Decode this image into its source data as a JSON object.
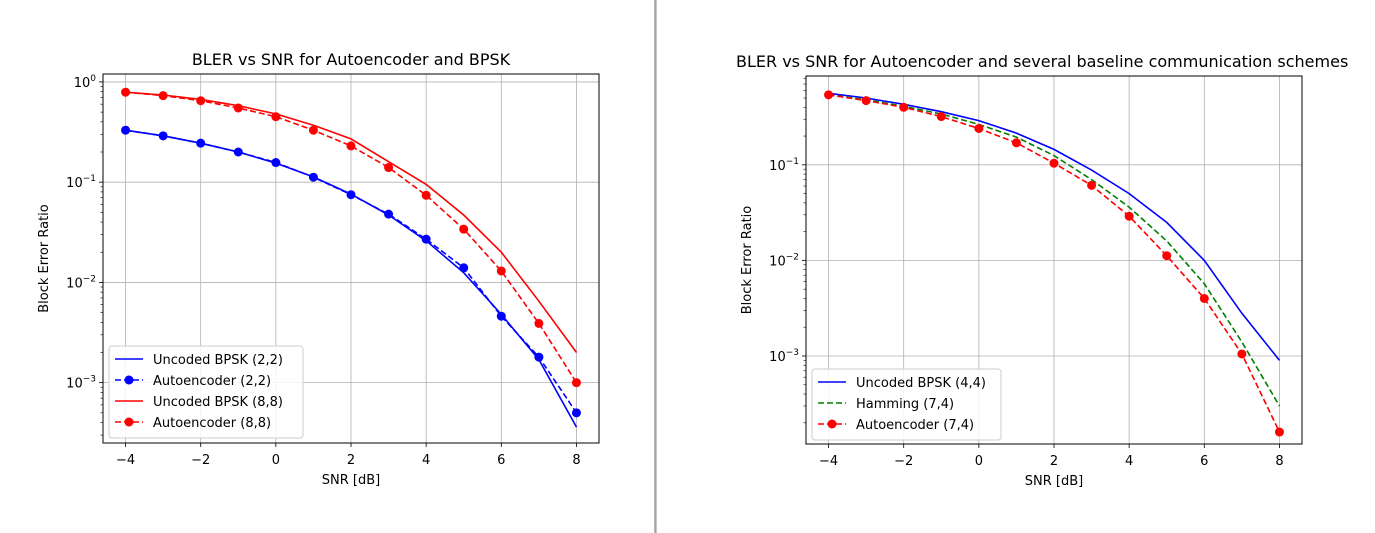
{
  "chart_data": [
    {
      "type": "line",
      "yscale": "log",
      "title": "BLER vs SNR for Autoencoder and BPSK",
      "xlabel": "SNR [dB]",
      "ylabel": "Block Error Ratio",
      "xlim": [
        -4.6,
        8.6
      ],
      "ylim": [
        0.00025,
        1.2
      ],
      "xticks": [
        -4,
        -2,
        0,
        2,
        4,
        6,
        8
      ],
      "yticks": [
        {
          "value": 1,
          "base": "10",
          "exp": "0"
        },
        {
          "value": 0.1,
          "base": "10",
          "exp": "−1"
        },
        {
          "value": 0.01,
          "base": "10",
          "exp": "−2"
        },
        {
          "value": 0.001,
          "base": "10",
          "exp": "−3"
        }
      ],
      "grid": true,
      "legend_position": "lower-left",
      "x": [
        -4,
        -3,
        -2,
        -1,
        0,
        1,
        2,
        3,
        4,
        5,
        6,
        7,
        8
      ],
      "series": [
        {
          "name": "Uncoded BPSK (2,2)",
          "color": "#0000ff",
          "dash": "solid",
          "marker": "none",
          "values": [
            0.33,
            0.29,
            0.245,
            0.2,
            0.155,
            0.113,
            0.076,
            0.047,
            0.026,
            0.0125,
            0.0048,
            0.0017,
            0.00036
          ]
        },
        {
          "name": "Autoencoder (2,2)",
          "color": "#0000ff",
          "dash": "dashed",
          "marker": "circle",
          "values": [
            0.33,
            0.29,
            0.245,
            0.2,
            0.157,
            0.112,
            0.075,
            0.048,
            0.027,
            0.014,
            0.0046,
            0.0018,
            0.0005
          ]
        },
        {
          "name": "Uncoded BPSK (8,8)",
          "color": "#ff0000",
          "dash": "solid",
          "marker": "none",
          "values": [
            0.79,
            0.74,
            0.67,
            0.58,
            0.48,
            0.37,
            0.27,
            0.16,
            0.095,
            0.047,
            0.02,
            0.0065,
            0.002
          ]
        },
        {
          "name": "Autoencoder (8,8)",
          "color": "#ff0000",
          "dash": "dashed",
          "marker": "circle",
          "values": [
            0.79,
            0.73,
            0.65,
            0.55,
            0.45,
            0.33,
            0.23,
            0.14,
            0.074,
            0.034,
            0.013,
            0.0039,
            0.001
          ]
        }
      ]
    },
    {
      "type": "line",
      "yscale": "log",
      "title": "BLER vs SNR for Autoencoder and several baseline communication schemes",
      "xlabel": "SNR [dB]",
      "ylabel": "Block Error Ratio",
      "xlim": [
        -4.6,
        8.6
      ],
      "ylim": [
        0.00012,
        0.85
      ],
      "xticks": [
        -4,
        -2,
        0,
        2,
        4,
        6,
        8
      ],
      "yticks": [
        {
          "value": 0.1,
          "base": "10",
          "exp": "−1"
        },
        {
          "value": 0.01,
          "base": "10",
          "exp": "−2"
        },
        {
          "value": 0.001,
          "base": "10",
          "exp": "−3"
        }
      ],
      "grid": true,
      "legend_position": "lower-left",
      "x": [
        -4,
        -3,
        -2,
        -1,
        0,
        1,
        2,
        3,
        4,
        5,
        6,
        7,
        8
      ],
      "series": [
        {
          "name": "Uncoded BPSK (4,4)",
          "color": "#0000ff",
          "dash": "solid",
          "marker": "none",
          "values": [
            0.56,
            0.5,
            0.43,
            0.36,
            0.29,
            0.215,
            0.145,
            0.088,
            0.05,
            0.025,
            0.01,
            0.0028,
            0.0009
          ]
        },
        {
          "name": "Hamming (7,4)",
          "color": "#008000",
          "dash": "dashed",
          "marker": "none",
          "values": [
            0.54,
            0.48,
            0.41,
            0.34,
            0.265,
            0.195,
            0.125,
            0.07,
            0.036,
            0.016,
            0.0057,
            0.0014,
            0.0003
          ]
        },
        {
          "name": "Autoencoder (7,4)",
          "color": "#ff0000",
          "dash": "dashed",
          "marker": "circle",
          "values": [
            0.54,
            0.47,
            0.4,
            0.32,
            0.24,
            0.17,
            0.104,
            0.061,
            0.029,
            0.0112,
            0.004,
            0.00105,
            0.00016
          ]
        }
      ]
    }
  ]
}
